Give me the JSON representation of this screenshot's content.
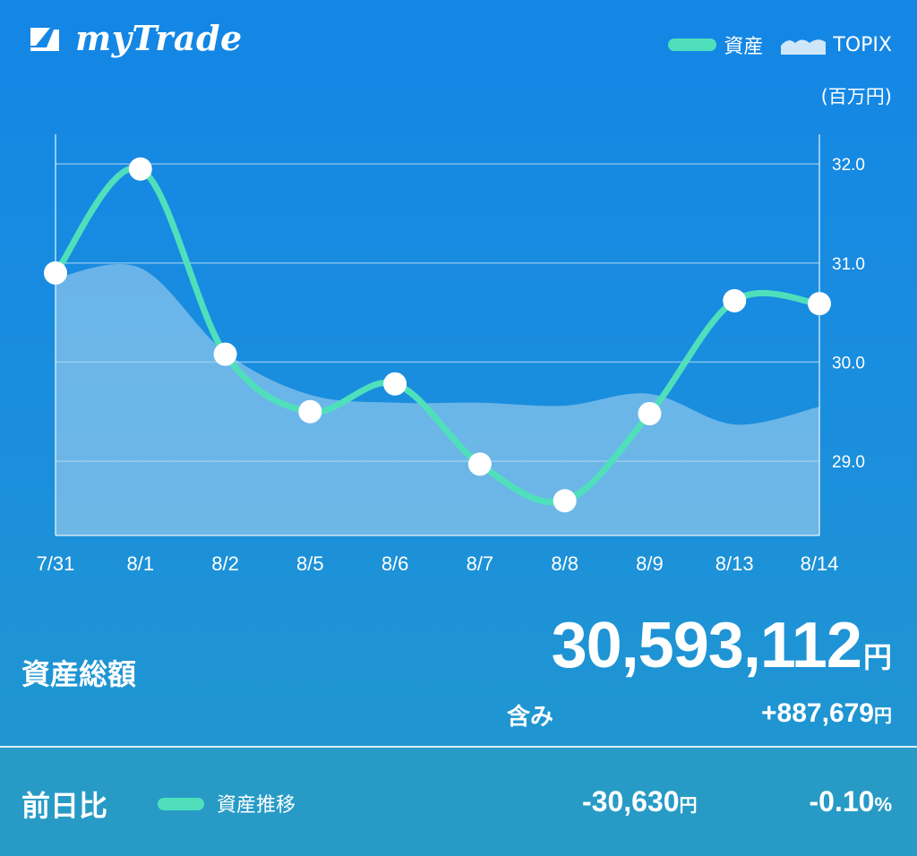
{
  "app": {
    "title": "myTrade"
  },
  "legend": {
    "assets": "資産",
    "topix": "TOPIX"
  },
  "unit": "(百万円)",
  "chart_data": {
    "type": "line",
    "categories": [
      "7/31",
      "8/1",
      "8/2",
      "8/5",
      "8/6",
      "8/7",
      "8/8",
      "8/9",
      "8/13",
      "8/14"
    ],
    "series": [
      {
        "name": "資産",
        "values": [
          30.9,
          31.95,
          30.08,
          29.5,
          29.78,
          28.97,
          28.6,
          29.48,
          30.62,
          30.59
        ],
        "color": "#4fe0bb"
      },
      {
        "name": "TOPIX",
        "values": [
          30.85,
          30.95,
          30.1,
          29.67,
          29.59,
          29.59,
          29.56,
          29.68,
          29.37,
          29.55
        ],
        "color": "#a9d3f2"
      }
    ],
    "ylim": [
      28.25,
      32.3
    ],
    "yticks": [
      "32.0",
      "31.0",
      "30.0",
      "29.0"
    ],
    "ytick_values": [
      32,
      31,
      30,
      29
    ],
    "grid": true,
    "legend": "top-right"
  },
  "summary": {
    "label": "資産総額",
    "total": "30,593,112",
    "yen": "円",
    "incl_label": "含み",
    "incl_value": "+887,679",
    "incl_yen": "円"
  },
  "footer": {
    "label": "前日比",
    "legend": "資産推移",
    "diff": "-30,630",
    "diff_yen": "円",
    "pct": "-0.10",
    "pct_sign": "%"
  },
  "colors": {
    "accent": "#4fe0bb",
    "bg_top": "#1386e6",
    "footer": "#279bc6"
  }
}
